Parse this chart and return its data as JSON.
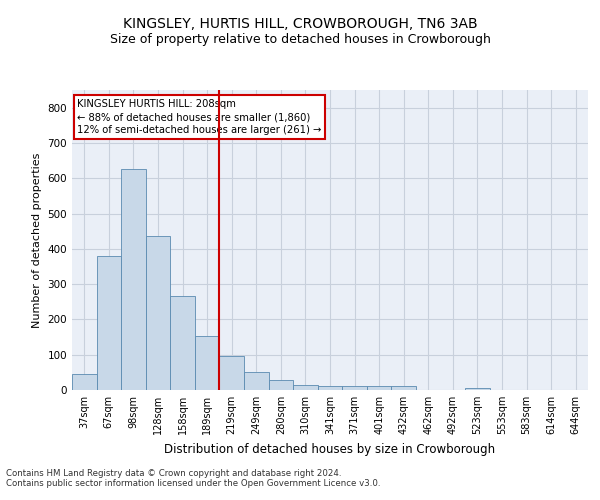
{
  "title": "KINGSLEY, HURTIS HILL, CROWBOROUGH, TN6 3AB",
  "subtitle": "Size of property relative to detached houses in Crowborough",
  "xlabel": "Distribution of detached houses by size in Crowborough",
  "ylabel": "Number of detached properties",
  "footnote1": "Contains HM Land Registry data © Crown copyright and database right 2024.",
  "footnote2": "Contains public sector information licensed under the Open Government Licence v3.0.",
  "categories": [
    "37sqm",
    "67sqm",
    "98sqm",
    "128sqm",
    "158sqm",
    "189sqm",
    "219sqm",
    "249sqm",
    "280sqm",
    "310sqm",
    "341sqm",
    "371sqm",
    "401sqm",
    "432sqm",
    "462sqm",
    "492sqm",
    "523sqm",
    "553sqm",
    "583sqm",
    "614sqm",
    "644sqm"
  ],
  "values": [
    44,
    381,
    625,
    437,
    267,
    153,
    95,
    52,
    27,
    15,
    11,
    11,
    11,
    10,
    0,
    0,
    7,
    0,
    0,
    0,
    0
  ],
  "bar_color": "#c8d8e8",
  "bar_edgecolor": "#5a8ab0",
  "vline_x": 5.5,
  "vline_color": "#cc0000",
  "annotation_line1": "KINGSLEY HURTIS HILL: 208sqm",
  "annotation_line2": "← 88% of detached houses are smaller (1,860)",
  "annotation_line3": "12% of semi-detached houses are larger (261) →",
  "annotation_box_color": "#ffffff",
  "annotation_box_edgecolor": "#cc0000",
  "ylim": [
    0,
    850
  ],
  "yticks": [
    0,
    100,
    200,
    300,
    400,
    500,
    600,
    700,
    800
  ],
  "grid_color": "#c8d0dc",
  "bg_color": "#eaeff7",
  "title_fontsize": 10,
  "subtitle_fontsize": 9,
  "ylabel_fontsize": 8,
  "xlabel_fontsize": 8.5
}
